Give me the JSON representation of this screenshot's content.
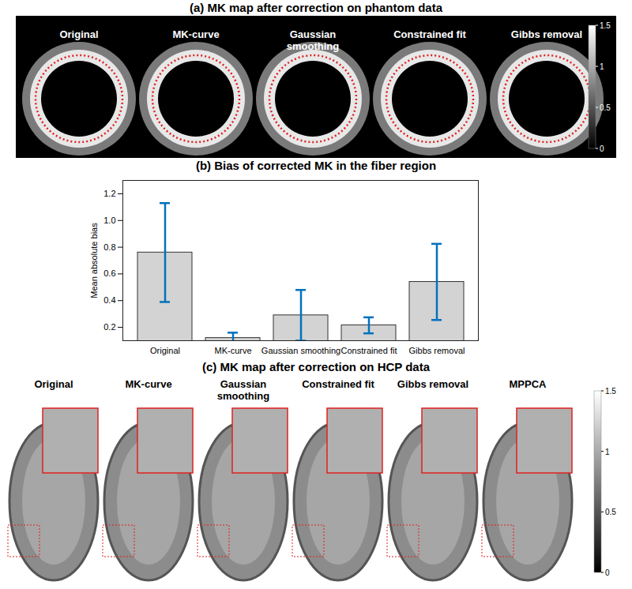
{
  "chart_data": {
    "type": "bar",
    "title": "(b) Bias of corrected MK in the fiber region",
    "ylabel": "Mean absolute bias",
    "categories": [
      "Original",
      "MK-curve",
      "Gaussian smoothing",
      "Constrained fit",
      "Gibbs removal"
    ],
    "values": [
      0.76,
      0.12,
      0.29,
      0.215,
      0.54
    ],
    "errors": [
      0.37,
      0.04,
      0.19,
      0.06,
      0.285
    ],
    "color": "#d3d3d3",
    "error_color": "#0072bd",
    "ylim": [
      0.1,
      1.3
    ],
    "yticks": [
      0.2,
      0.4,
      0.6,
      0.8,
      1,
      1.2
    ],
    "grid": false
  },
  "panel_a": {
    "title": "(a) MK map after correction on phantom data",
    "images": [
      "Original",
      "MK-curve",
      "Gaussian smoothing",
      "Constrained fit",
      "Gibbs removal"
    ],
    "colorbar": {
      "range": [
        0,
        1.5
      ],
      "ticks": [
        0,
        0.5,
        1,
        1.5
      ]
    }
  },
  "panel_c": {
    "title": "(c) MK map after correction on HCP data",
    "images": [
      "Original",
      "MK-curve",
      "Gaussian smoothing",
      "Constrained fit",
      "Gibbs removal",
      "MPPCA"
    ],
    "colorbar": {
      "range": [
        0,
        1.5
      ],
      "ticks": [
        0,
        0.5,
        1,
        1.5
      ]
    }
  }
}
